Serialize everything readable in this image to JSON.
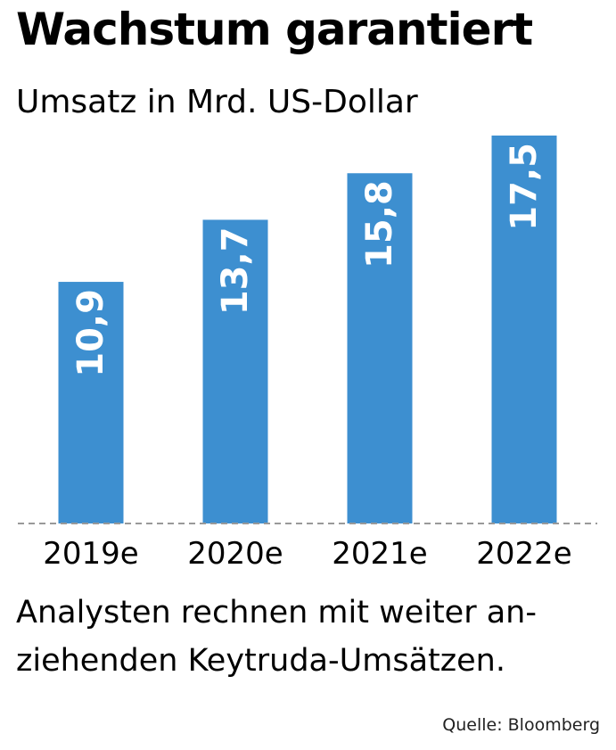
{
  "title": "Wachstum garantiert",
  "subtitle": "Umsatz in Mrd. US-Dollar",
  "caption": {
    "line1": "Analysten rechnen mit weiter an-",
    "line2": "ziehenden Keytruda-Umsätzen."
  },
  "source": "Quelle: Bloomberg",
  "colors": {
    "bar": "#3d8fd0",
    "bar_label": "#ffffff",
    "baseline": "#999999"
  },
  "chart_data": {
    "type": "bar",
    "title": "Wachstum garantiert",
    "subtitle": "Umsatz in Mrd. US-Dollar",
    "categories": [
      "2019e",
      "2020e",
      "2021e",
      "2022e"
    ],
    "values": [
      10.9,
      13.7,
      15.8,
      17.5
    ],
    "value_labels": [
      "10,9",
      "13,7",
      "15,8",
      "17,5"
    ],
    "ylim": [
      0,
      17.5
    ],
    "grid": false,
    "legend": "none"
  }
}
